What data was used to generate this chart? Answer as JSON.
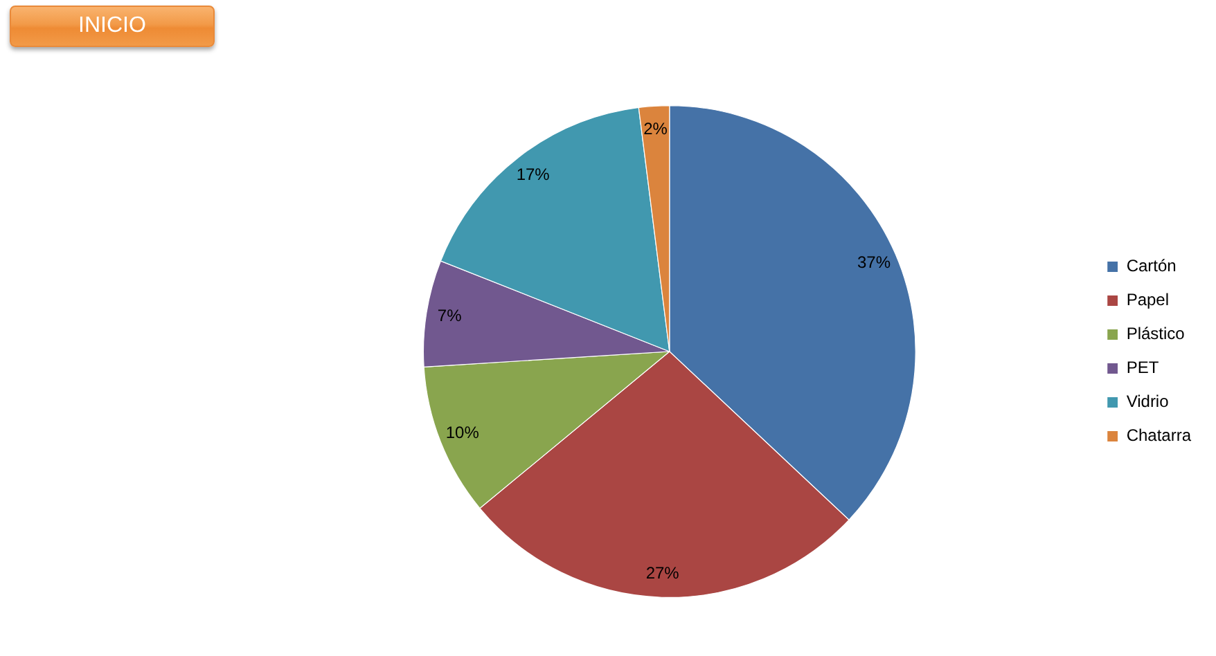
{
  "chart_data": {
    "type": "pie",
    "categories": [
      "Cartón",
      "Papel",
      "Plástico",
      "PET",
      "Vidrio",
      "Chatarra"
    ],
    "values": [
      37,
      27,
      10,
      7,
      17,
      2
    ],
    "colors": [
      "#4572a7",
      "#aa4643",
      "#89a54e",
      "#71588f",
      "#4198af",
      "#db843d"
    ],
    "value_labels": [
      "37%",
      "27%",
      "10%",
      "7%",
      "17%",
      "2%"
    ],
    "legend": "right",
    "annotations": [
      "INICIO"
    ]
  }
}
